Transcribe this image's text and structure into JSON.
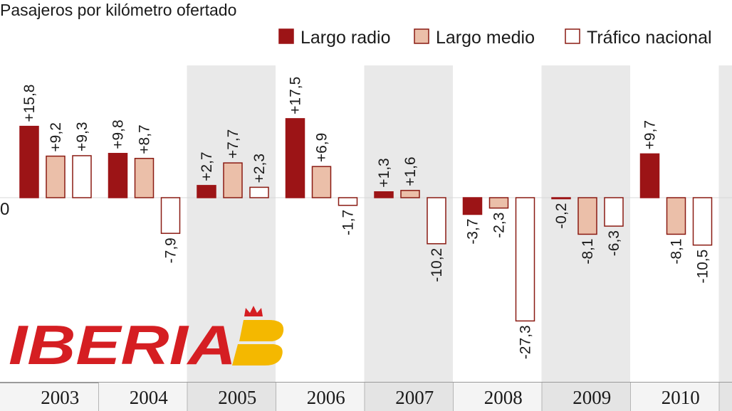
{
  "colors": {
    "largo_radio": "#9c1416",
    "largo_medio": "#ebbfa9",
    "trafico_nacional": "#ffffff",
    "bar_stroke": "#8a1a12",
    "band": "#e9e9e9",
    "logo_red": "#d51e22",
    "logo_yellow": "#f4b800"
  },
  "logo": {
    "text": "IBERIA"
  },
  "chart_data": {
    "type": "bar",
    "title": "Pasajeros por kilómetro ofertado",
    "zero_label": "0",
    "categories": [
      "2003",
      "2004",
      "2005",
      "2006",
      "2007",
      "2008",
      "2009",
      "2010"
    ],
    "series": [
      {
        "name": "Largo radio",
        "values": [
          15.8,
          9.8,
          2.7,
          17.5,
          1.3,
          -3.7,
          -0.2,
          9.7
        ],
        "labels": [
          "+15,8",
          "+9,8",
          "+2,7",
          "+17,5",
          "+1,3",
          "-3,7",
          "-0,2",
          "+9,7"
        ]
      },
      {
        "name": "Largo medio",
        "values": [
          9.2,
          8.7,
          7.7,
          6.9,
          1.6,
          -2.3,
          -8.1,
          -8.1
        ],
        "labels": [
          "+9,2",
          "+8,7",
          "+7,7",
          "+6,9",
          "+1,6",
          "-2,3",
          "-8,1",
          "-8,1"
        ]
      },
      {
        "name": "Tráfico nacional",
        "values": [
          9.3,
          -7.9,
          2.3,
          -1.7,
          -10.2,
          -27.3,
          -6.3,
          -10.5
        ],
        "labels": [
          "+9,3",
          "-7,9",
          "+2,3",
          "-1,7",
          "-10,2",
          "-27,3",
          "-6,3",
          "-10,5"
        ]
      }
    ],
    "legend_position": "top-right",
    "shaded_columns": [
      "2004",
      "2006",
      "2008",
      "2010"
    ]
  }
}
